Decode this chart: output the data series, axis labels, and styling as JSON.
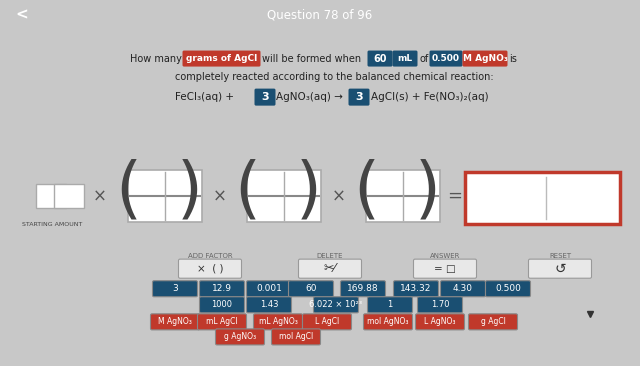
{
  "title": "Question 78 of 96",
  "title_bg": "#c0392b",
  "title_text_color": "#ffffff",
  "bg_top": "#e8e8e8",
  "bg_calc": "#d8d8d8",
  "bg_bottom": "#ffffff",
  "blue_bar": "#1a5276",
  "gray_bar": "#6d7b7b",
  "button_blue": "#1a4f72",
  "button_red": "#c0392b",
  "button_light": "#e8e8e8",
  "nums_row1": [
    "3",
    "12.9",
    "0.001",
    "60",
    "169.88",
    "143.32",
    "4.30",
    "0.500"
  ],
  "nums_row2": [
    "1000",
    "1.43",
    "6.022 × 10²³",
    "1",
    "1.70"
  ],
  "labels_row1": [
    "M AgNO₃",
    "mL AgCl",
    "mL AgNO₃",
    "L AgCl",
    "mol AgNO₃",
    "L AgNO₃",
    "g AgCl"
  ],
  "labels_row2": [
    "g AgNO₃",
    "mol AgCl"
  ],
  "action_labels": [
    "ADD FACTOR",
    "DELETE",
    "ANSWER",
    "RESET"
  ]
}
